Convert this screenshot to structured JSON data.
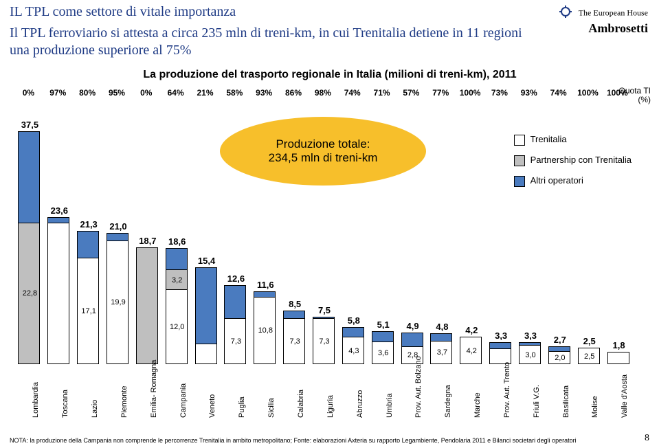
{
  "title_color": "#1f3b85",
  "subtitle_color": "#1f3b85",
  "chart_title_color": "#000000",
  "colors": {
    "partnership": "#bfbfbf",
    "altri": "#4a7bbf",
    "trenitalia": "#ffffff",
    "bubble": "#f7bf2b"
  },
  "title": "IL TPL come settore di vitale importanza",
  "subtitle": "Il TPL ferroviario si attesta a circa 235 mln di treni-km, in cui Trenitalia detiene in 11 regioni una produzione superiore al 75%",
  "chart_title": "La produzione del trasporto regionale in Italia (milioni di treni-km), 2011",
  "quota_label": "Quota TI (%)",
  "bubble": "Produzione totale:\n234,5 mln di treni-km",
  "legend": {
    "trenitalia": "Trenitalia",
    "partnership": "Partnership con Trenitalia",
    "altri": "Altri operatori"
  },
  "logo": {
    "line1": "The European House",
    "line2": "Ambrosetti"
  },
  "footnote": "NOTA: la produzione della Campania non comprende le percorrenze Trenitalia in ambito metropolitano; Fonte: elaborazioni Axteria su rapporto Legambiente, Pendolaria 2011 e Bilanci societari degli operatori",
  "page": "8",
  "y_scale": 9.0,
  "chart": {
    "categories": [
      "Lombardia",
      "Toscana",
      "Lazio",
      "Piemonte",
      "Emilia-\nRomagna",
      "Campania",
      "Veneto",
      "Puglia",
      "Sicilia",
      "Calabria",
      "Liguria",
      "Abruzzo",
      "Umbria",
      "Prov. Aut.\nBolzano",
      "Sardegna",
      "Marche",
      "Prov. Aut.\nTrento",
      "Friuli V.G.",
      "Basilicata",
      "Molise",
      "Valle\nd'Aosta"
    ],
    "pct": [
      "0%",
      "97%",
      "80%",
      "95%",
      "0%",
      "64%",
      "21%",
      "58%",
      "93%",
      "86%",
      "98%",
      "74%",
      "71%",
      "57%",
      "77%",
      "100%",
      "73%",
      "93%",
      "74%",
      "100%",
      "100%"
    ],
    "totals": [
      "37,5",
      "23,6",
      "21,3",
      "21,0",
      "18,7",
      "18,6",
      "15,4",
      "12,6",
      "11,6",
      "8,5",
      "7,5",
      "5,8",
      "5,1",
      "4,9",
      "4,8",
      "4,2",
      "3,3",
      "3,3",
      "2,7",
      "2,5",
      "1,8"
    ],
    "bars": [
      {
        "total": 37.5,
        "segs": [
          {
            "h": 22.8,
            "c": "partnership",
            "lbl": "22,8"
          },
          {
            "h": 14.7,
            "c": "altri",
            "lbl": ""
          }
        ]
      },
      {
        "total": 23.6,
        "segs": [
          {
            "h": 22.8,
            "c": "trenitalia",
            "lbl": ""
          },
          {
            "h": 0.8,
            "c": "altri",
            "lbl": ""
          }
        ]
      },
      {
        "total": 21.3,
        "segs": [
          {
            "h": 17.1,
            "c": "trenitalia",
            "lbl": "17,1"
          },
          {
            "h": 4.2,
            "c": "altri",
            "lbl": ""
          }
        ]
      },
      {
        "total": 21.0,
        "segs": [
          {
            "h": 19.9,
            "c": "trenitalia",
            "lbl": "19,9"
          },
          {
            "h": 1.1,
            "c": "altri",
            "lbl": ""
          }
        ]
      },
      {
        "total": 18.7,
        "segs": [
          {
            "h": 18.7,
            "c": "partnership",
            "lbl": ""
          }
        ]
      },
      {
        "total": 18.6,
        "segs": [
          {
            "h": 12.0,
            "c": "trenitalia",
            "lbl": "12,0"
          },
          {
            "h": 3.2,
            "c": "partnership",
            "lbl": "3,2"
          },
          {
            "h": 3.4,
            "c": "altri",
            "lbl": ""
          }
        ]
      },
      {
        "total": 15.4,
        "segs": [
          {
            "h": 3.2,
            "c": "trenitalia",
            "lbl": ""
          },
          {
            "h": 12.2,
            "c": "altri",
            "lbl": ""
          }
        ]
      },
      {
        "total": 12.6,
        "segs": [
          {
            "h": 7.3,
            "c": "trenitalia",
            "lbl": "7,3"
          },
          {
            "h": 5.3,
            "c": "altri",
            "lbl": ""
          }
        ]
      },
      {
        "total": 11.6,
        "segs": [
          {
            "h": 10.8,
            "c": "trenitalia",
            "lbl": "10,8"
          },
          {
            "h": 0.8,
            "c": "altri",
            "lbl": ""
          }
        ]
      },
      {
        "total": 8.5,
        "segs": [
          {
            "h": 7.3,
            "c": "trenitalia",
            "lbl": "7,3"
          },
          {
            "h": 1.2,
            "c": "altri",
            "lbl": ""
          }
        ]
      },
      {
        "total": 7.5,
        "segs": [
          {
            "h": 7.3,
            "c": "trenitalia",
            "lbl": "7,3"
          },
          {
            "h": 0.2,
            "c": "altri",
            "lbl": ""
          }
        ]
      },
      {
        "total": 5.8,
        "segs": [
          {
            "h": 4.3,
            "c": "trenitalia",
            "lbl": "4,3"
          },
          {
            "h": 1.5,
            "c": "altri",
            "lbl": ""
          }
        ]
      },
      {
        "total": 5.1,
        "segs": [
          {
            "h": 3.6,
            "c": "trenitalia",
            "lbl": "3,6"
          },
          {
            "h": 1.5,
            "c": "altri",
            "lbl": ""
          }
        ]
      },
      {
        "total": 4.9,
        "segs": [
          {
            "h": 2.8,
            "c": "trenitalia",
            "lbl": "2,8"
          },
          {
            "h": 2.1,
            "c": "altri",
            "lbl": ""
          }
        ]
      },
      {
        "total": 4.8,
        "segs": [
          {
            "h": 3.7,
            "c": "trenitalia",
            "lbl": "3,7"
          },
          {
            "h": 1.1,
            "c": "altri",
            "lbl": ""
          }
        ]
      },
      {
        "total": 4.2,
        "segs": [
          {
            "h": 4.2,
            "c": "trenitalia",
            "lbl": "4,2"
          }
        ]
      },
      {
        "total": 3.3,
        "segs": [
          {
            "h": 2.4,
            "c": "trenitalia",
            "lbl": ""
          },
          {
            "h": 0.9,
            "c": "altri",
            "lbl": ""
          }
        ]
      },
      {
        "total": 3.3,
        "segs": [
          {
            "h": 3.0,
            "c": "trenitalia",
            "lbl": "3,0"
          },
          {
            "h": 0.3,
            "c": "altri",
            "lbl": ""
          }
        ]
      },
      {
        "total": 2.7,
        "segs": [
          {
            "h": 2.0,
            "c": "trenitalia",
            "lbl": "2,0"
          },
          {
            "h": 0.7,
            "c": "altri",
            "lbl": ""
          }
        ]
      },
      {
        "total": 2.5,
        "segs": [
          {
            "h": 2.5,
            "c": "trenitalia",
            "lbl": "2,5"
          }
        ]
      },
      {
        "total": 1.8,
        "segs": [
          {
            "h": 1.8,
            "c": "trenitalia",
            "lbl": ""
          }
        ]
      }
    ]
  }
}
